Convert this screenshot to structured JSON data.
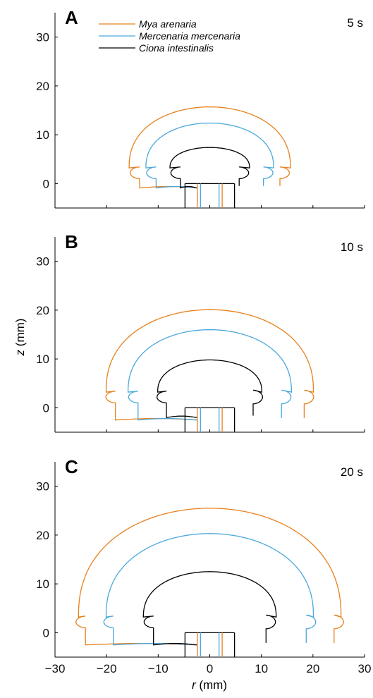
{
  "figure": {
    "ylabel_var": "z",
    "ylabel_unit": " (mm)",
    "xlabel_var": "r",
    "xlabel_unit": " (mm)"
  },
  "colors": {
    "mya": "#E8801E",
    "mercenaria": "#4AA8DC",
    "ciona": "#000000"
  },
  "chart_data": [
    {
      "type": "line",
      "panel": "A",
      "time": "5 s",
      "xlim": [
        -30,
        30
      ],
      "ylim": [
        -5,
        35
      ],
      "xticks": [
        -30,
        -20,
        -10,
        0,
        10,
        20,
        30
      ],
      "yticks": [
        0,
        10,
        20,
        30
      ],
      "legend": "top-left",
      "grid": false,
      "series": [
        {
          "name": "Mya arenaria",
          "color": "#E8801E",
          "R": 15.8,
          "top": 15.7,
          "flare": 15.2,
          "base": -0.9
        },
        {
          "name": "Mercenaria mercenaria",
          "color": "#4AA8DC",
          "R": 12.5,
          "top": 12.4,
          "flare": 12.0,
          "base": -0.9
        },
        {
          "name": "Ciona intestinalis",
          "color": "#000000",
          "R": 7.8,
          "top": 7.4,
          "flare": 7.3,
          "base": -0.9
        }
      ]
    },
    {
      "type": "line",
      "panel": "B",
      "time": "10 s",
      "xlim": [
        -30,
        30
      ],
      "ylim": [
        -5,
        35
      ],
      "xticks": [
        -30,
        -20,
        -10,
        0,
        10,
        20,
        30
      ],
      "yticks": [
        0,
        10,
        20,
        30
      ],
      "grid": false,
      "series": [
        {
          "name": "Mya arenaria",
          "color": "#E8801E",
          "R": 20.3,
          "top": 20.1,
          "flare": 19.9,
          "base": -2.5
        },
        {
          "name": "Mercenaria mercenaria",
          "color": "#4AA8DC",
          "R": 16.0,
          "top": 16.0,
          "flare": 15.5,
          "base": -2.5
        },
        {
          "name": "Ciona intestinalis",
          "color": "#000000",
          "R": 10.2,
          "top": 9.8,
          "flare": 10.0,
          "base": -2.0
        }
      ]
    },
    {
      "type": "line",
      "panel": "C",
      "time": "20 s",
      "xlim": [
        -30,
        30
      ],
      "ylim": [
        -5,
        35
      ],
      "xticks": [
        -30,
        -20,
        -10,
        0,
        10,
        20,
        30
      ],
      "yticks": [
        0,
        10,
        20,
        30
      ],
      "grid": false,
      "series": [
        {
          "name": "Mya arenaria",
          "color": "#E8801E",
          "R": 25.7,
          "top": 25.5,
          "flare": 25.7,
          "base": -2.5
        },
        {
          "name": "Mercenaria mercenaria",
          "color": "#4AA8DC",
          "R": 20.3,
          "top": 20.3,
          "flare": 20.3,
          "base": -2.5
        },
        {
          "name": "Ciona intestinalis",
          "color": "#000000",
          "R": 13.0,
          "top": 12.5,
          "flare": 12.5,
          "base": -2.5
        }
      ]
    }
  ]
}
